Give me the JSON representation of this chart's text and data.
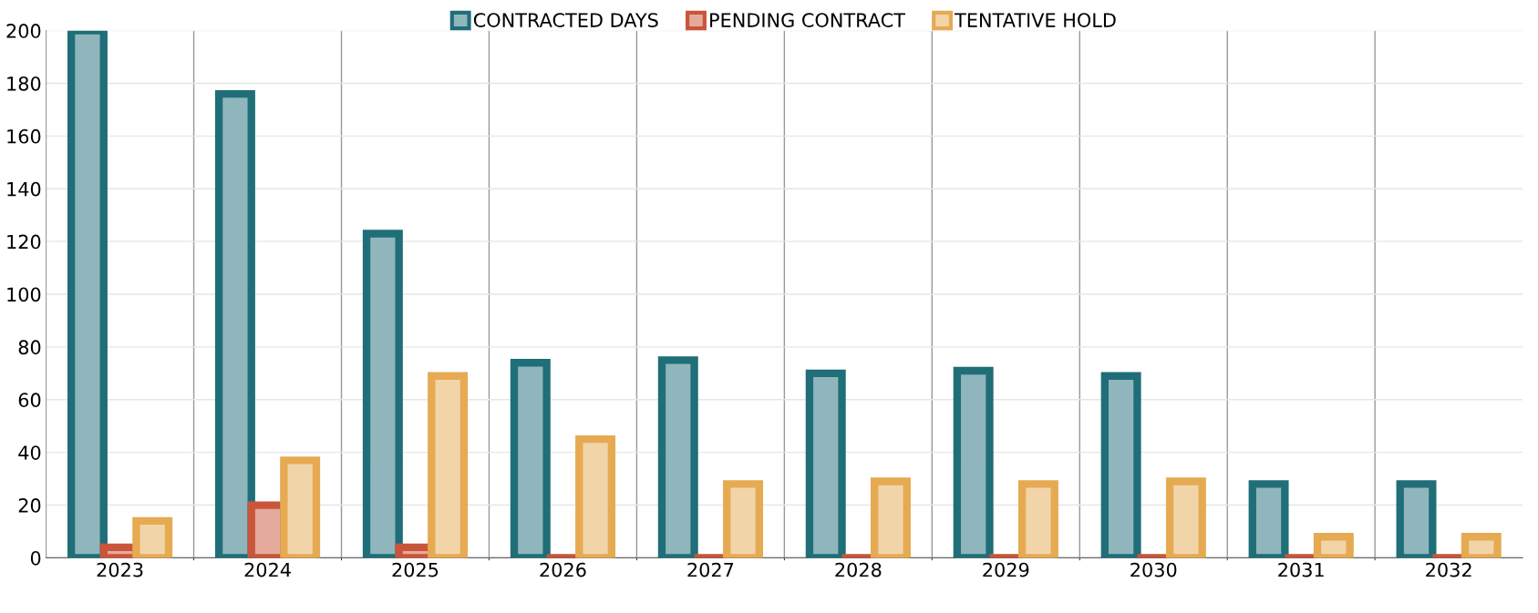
{
  "chart_data": {
    "type": "bar",
    "categories": [
      "2023",
      "2024",
      "2025",
      "2026",
      "2027",
      "2028",
      "2029",
      "2030",
      "2031",
      "2032"
    ],
    "series": [
      {
        "name": "CONTRACTED DAYS",
        "color": "#1f6e78",
        "values": [
          200,
          176,
          123,
          74,
          75,
          70,
          71,
          69,
          28,
          28
        ]
      },
      {
        "name": "PENDING CONTRACT",
        "color": "#c9553a",
        "values": [
          4,
          20,
          4,
          0,
          0,
          0,
          0,
          0,
          0,
          0
        ]
      },
      {
        "name": "TENTATIVE HOLD",
        "color": "#e6aa52",
        "values": [
          14,
          37,
          69,
          45,
          28,
          29,
          28,
          29,
          8,
          8
        ]
      }
    ],
    "ylim": [
      0,
      200
    ],
    "yticks": [
      0,
      20,
      40,
      60,
      80,
      100,
      120,
      140,
      160,
      180,
      200
    ],
    "grid": true,
    "legend": "top"
  }
}
